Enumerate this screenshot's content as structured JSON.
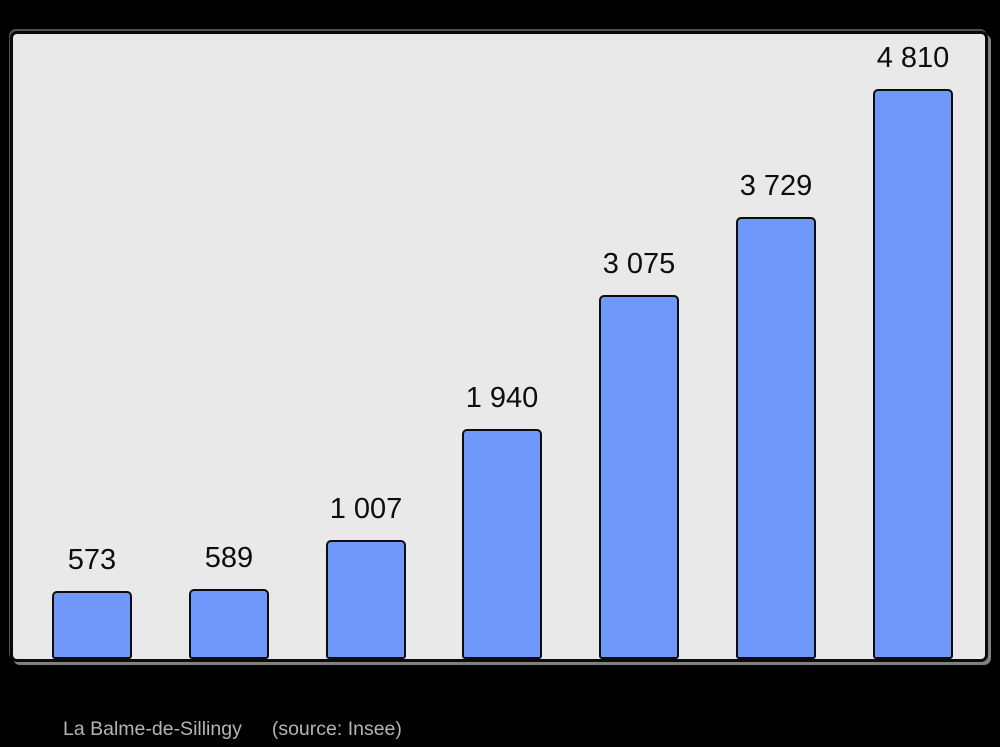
{
  "chart_data": {
    "type": "bar",
    "title": "",
    "categories": [
      "",
      "",
      "",
      "",
      "",
      "",
      ""
    ],
    "values": [
      573,
      589,
      1007,
      1940,
      3075,
      3729,
      4810
    ],
    "value_labels": [
      "573",
      "589",
      "1 007",
      "1 940",
      "3 075",
      "3 729",
      "4 810"
    ],
    "ylim": [
      0,
      5240
    ],
    "xlabel": "",
    "ylabel": "",
    "grid": false,
    "legend": false,
    "axis_tick_labels_visible": false,
    "bar_color": "#7097fa",
    "bar_border_color": "#0d0d0d",
    "plot_background": "#e9e9e9",
    "page_background": "#000000",
    "value_label_color": "#0d0d0d"
  },
  "caption": {
    "text": "La Balme-de-Sillingy",
    "source": "(source: Insee)",
    "color": "#b4b4b4"
  }
}
